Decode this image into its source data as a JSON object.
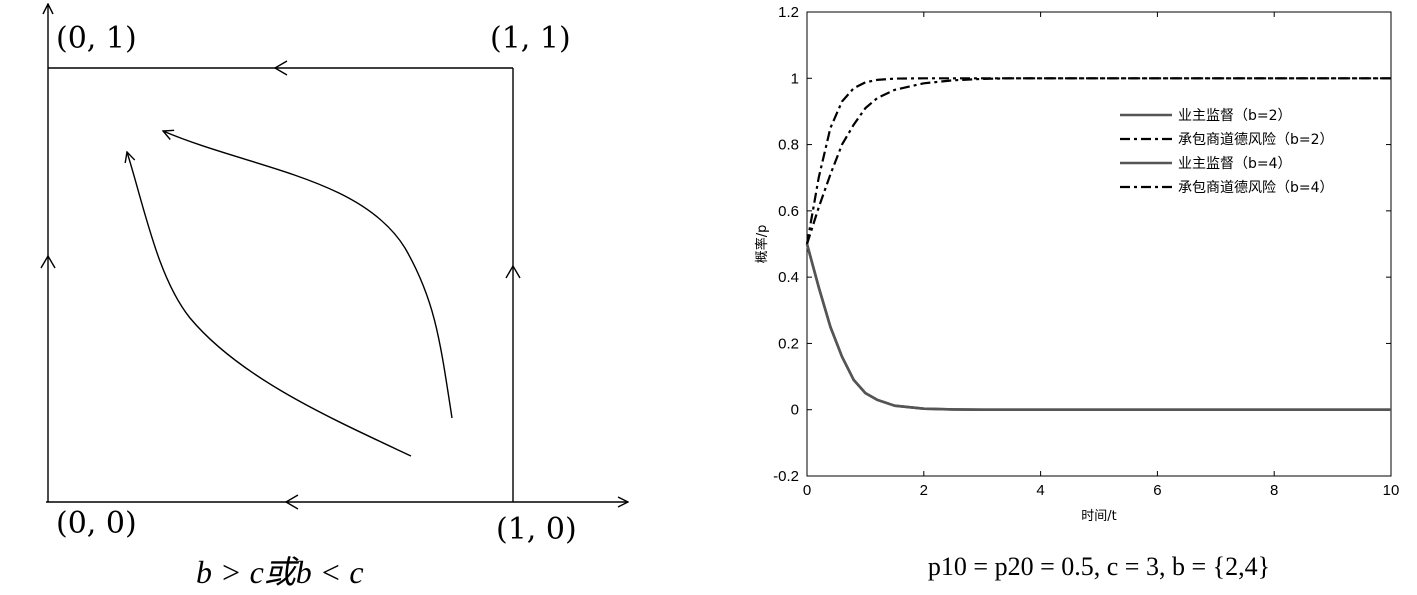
{
  "phase_diagram": {
    "corners": {
      "top_left": "(0, 1)",
      "top_right": "(1, 1)",
      "bottom_left": "(0, 0)",
      "bottom_right": "(1, 0)"
    },
    "caption": "b > c或b < c"
  },
  "chart_data": {
    "type": "line",
    "xlabel": "时间/t",
    "ylabel": "概率/p",
    "xlim": [
      0,
      10
    ],
    "ylim": [
      -0.2,
      1.2
    ],
    "xticks": [
      "0",
      "2",
      "4",
      "6",
      "8",
      "10"
    ],
    "yticks": [
      "-0.2",
      "0",
      "0.2",
      "0.4",
      "0.6",
      "0.8",
      "1",
      "1.2"
    ],
    "legend_position": "top-right",
    "caption": "p10 = p20 = 0.5, c = 3, b = {2,4}",
    "series": [
      {
        "name": "业主监督（b=2）",
        "style": "solid",
        "color": "#555555",
        "x": [
          0,
          0.2,
          0.4,
          0.6,
          0.8,
          1.0,
          1.2,
          1.5,
          2.0,
          2.5,
          3.0,
          4,
          6,
          8,
          10
        ],
        "y": [
          0.5,
          0.37,
          0.25,
          0.16,
          0.09,
          0.05,
          0.03,
          0.012,
          0.003,
          0.001,
          0,
          0,
          0,
          0,
          0
        ]
      },
      {
        "name": "承包商道德风险（b=2）",
        "style": "dashdot",
        "color": "#000000",
        "x": [
          0,
          0.2,
          0.4,
          0.6,
          0.8,
          1.0,
          1.2,
          1.5,
          2.0,
          2.5,
          3.0,
          3.5,
          4,
          6,
          8,
          10
        ],
        "y": [
          0.5,
          0.61,
          0.71,
          0.8,
          0.86,
          0.91,
          0.94,
          0.965,
          0.985,
          0.994,
          0.998,
          1.0,
          1.0,
          1.0,
          1.0,
          1.0
        ]
      },
      {
        "name": "业主监督（b=4）",
        "style": "solid",
        "color": "#555555",
        "x": [
          0,
          0.2,
          0.4,
          0.6,
          0.8,
          1.0,
          1.2,
          1.5,
          2.0,
          2.5,
          3.0,
          4,
          6,
          8,
          10
        ],
        "y": [
          0.5,
          0.37,
          0.25,
          0.16,
          0.09,
          0.05,
          0.03,
          0.012,
          0.003,
          0.001,
          0,
          0,
          0,
          0,
          0
        ]
      },
      {
        "name": "承包商道德风险（b=4）",
        "style": "dashdot",
        "color": "#000000",
        "x": [
          0,
          0.2,
          0.4,
          0.6,
          0.8,
          1.0,
          1.2,
          1.5,
          2.0,
          2.5,
          3.0,
          4,
          6,
          8,
          10
        ],
        "y": [
          0.5,
          0.7,
          0.85,
          0.93,
          0.97,
          0.988,
          0.995,
          0.999,
          1.0,
          1.0,
          1.0,
          1.0,
          1.0,
          1.0,
          1.0
        ]
      }
    ]
  }
}
